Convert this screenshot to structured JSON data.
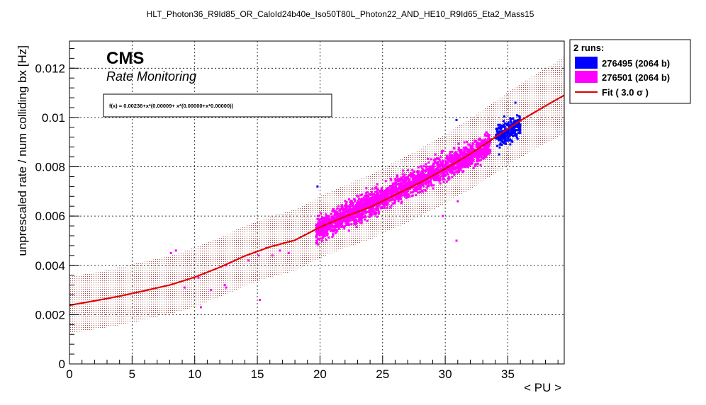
{
  "chart_data": {
    "type": "scatter",
    "title": "HLT_Photon36_R9Id85_OR_CaloId24b40e_Iso50T80L_Photon22_AND_HE10_R9Id65_Eta2_Mass15",
    "xlabel": "< PU >",
    "ylabel": "unprescaled rate / num colliding bx [Hz]",
    "xlim": [
      0,
      39.5
    ],
    "ylim": [
      0,
      0.0131
    ],
    "x_ticks": [
      "0",
      "5",
      "10",
      "15",
      "20",
      "25",
      "30",
      "35"
    ],
    "y_ticks": [
      "0",
      "0.002",
      "0.004",
      "0.006",
      "0.008",
      "0.01",
      "0.012"
    ],
    "grid": true,
    "branding": {
      "experiment": "CMS",
      "subtitle": "Rate Monitoring"
    },
    "fit_formula_text": "f(x) = 0.00236+x*(0.00009+ x*(0.00000+x*0.00000))",
    "fit": {
      "name": "Fit ( 3.0 σ )",
      "color": "#e00000",
      "band_sigma": 3.0,
      "points": [
        [
          0,
          0.00238
        ],
        [
          2,
          0.00256
        ],
        [
          4,
          0.00275
        ],
        [
          6,
          0.00297
        ],
        [
          8,
          0.0032
        ],
        [
          10,
          0.00352
        ],
        [
          12,
          0.00392
        ],
        [
          14,
          0.00438
        ],
        [
          16,
          0.00475
        ],
        [
          18,
          0.00502
        ],
        [
          20,
          0.00555
        ],
        [
          22,
          0.00598
        ],
        [
          24,
          0.00636
        ],
        [
          26,
          0.00686
        ],
        [
          28,
          0.00736
        ],
        [
          30,
          0.00792
        ],
        [
          32,
          0.00852
        ],
        [
          34,
          0.0092
        ],
        [
          36,
          0.00987
        ],
        [
          38,
          0.01047
        ],
        [
          39.5,
          0.0109
        ]
      ],
      "band_halfwidth": [
        [
          0,
          0.00115
        ],
        [
          20,
          0.00125
        ],
        [
          39.5,
          0.00155
        ]
      ]
    },
    "legend": {
      "header": "2 runs:",
      "placement": "top-right, outside plot",
      "entries": [
        {
          "label": "276495 (2064 b)",
          "color": "#0000ff",
          "kind": "box"
        },
        {
          "label": "276501 (2064 b)",
          "color": "#ff00ff",
          "kind": "box"
        },
        {
          "label": "Fit ( 3.0 σ )",
          "color": "#e00000",
          "kind": "line"
        }
      ]
    },
    "series": [
      {
        "name": "276495 (2064 b)",
        "color": "#0000ff",
        "cloud": {
          "x_range": [
            34.0,
            36.0
          ],
          "center_slope": [
            34.0,
            0.0092,
            36.0,
            0.0097
          ],
          "spread": 0.0004,
          "count": 260
        },
        "outliers": [
          [
            19.8,
            0.0072
          ],
          [
            30.9,
            0.0099
          ],
          [
            34.3,
            0.0085
          ],
          [
            35.6,
            0.0106
          ]
        ]
      },
      {
        "name": "276501 (2064 b)",
        "color": "#ff00ff",
        "cloud": {
          "x_range": [
            19.7,
            33.6
          ],
          "center_slope": [
            19.7,
            0.0054,
            33.6,
            0.0089
          ],
          "spread": 0.00045,
          "count": 2600
        },
        "outliers": [
          [
            8.1,
            0.0045
          ],
          [
            8.5,
            0.0046
          ],
          [
            9.2,
            0.0031
          ],
          [
            10.3,
            0.0035
          ],
          [
            10.5,
            0.0023
          ],
          [
            11.3,
            0.003
          ],
          [
            12.4,
            0.0032
          ],
          [
            12.5,
            0.0031
          ],
          [
            12.5,
            0.004
          ],
          [
            14.3,
            0.0042
          ],
          [
            15.1,
            0.0044
          ],
          [
            15.2,
            0.0026
          ],
          [
            15.7,
            0.0047
          ],
          [
            16.2,
            0.0044
          ],
          [
            16.8,
            0.0046
          ],
          [
            17.5,
            0.0045
          ],
          [
            19.9,
            0.006
          ],
          [
            29.8,
            0.006
          ],
          [
            30.9,
            0.005
          ],
          [
            31.0,
            0.0066
          ]
        ]
      }
    ]
  },
  "colors": {
    "axis": "#000000",
    "grid": "#000000",
    "band": "#b06060",
    "fit_line": "#e00000"
  }
}
